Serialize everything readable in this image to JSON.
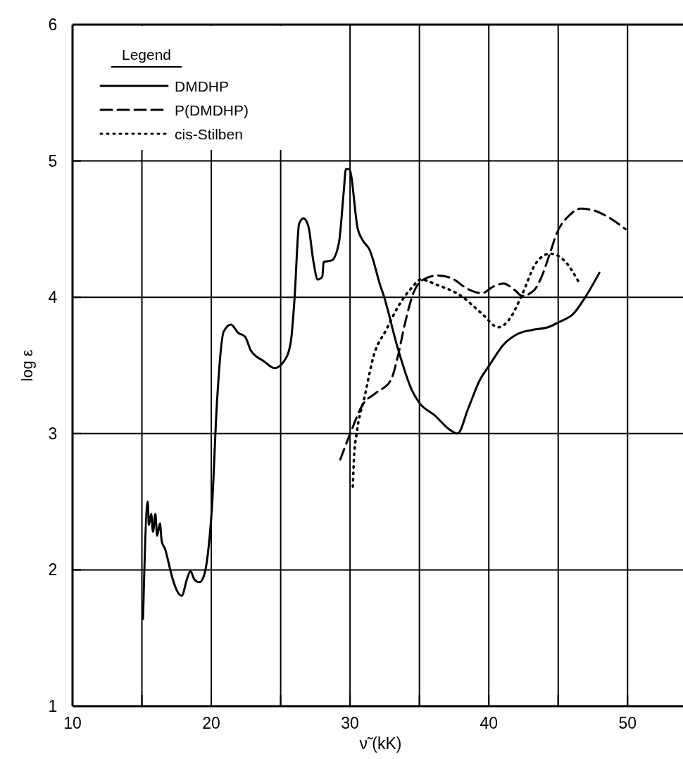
{
  "chart_data": {
    "type": "line",
    "xlabel": "ν̃ (kK)",
    "ylabel": "log ε",
    "legend_title": "Legend",
    "legend": "top left",
    "grid": true,
    "marker": "none",
    "xlim": [
      10,
      54.3
    ],
    "ylim": [
      1,
      6
    ],
    "xticks": [
      10,
      {
        "value": 15,
        "label": null
      },
      20,
      {
        "value": 25,
        "label": null
      },
      30,
      {
        "value": 35,
        "label": null
      },
      40,
      {
        "value": 45,
        "label": null
      },
      50
    ],
    "yticks": [
      1,
      2,
      3,
      4,
      5,
      6
    ],
    "series": [
      {
        "name": "DMDHP",
        "color": "#000000",
        "line_style": "solid",
        "x": [
          15.08,
          15.42,
          15.5,
          15.67,
          15.8,
          15.97,
          16.1,
          16.3,
          16.43,
          16.68,
          17.0,
          17.2,
          17.87,
          18.27,
          18.5,
          18.78,
          19.14,
          19.48,
          19.8,
          20.05,
          20.4,
          20.9,
          21.42,
          21.93,
          22.44,
          22.85,
          23.8,
          24.55,
          25.3,
          25.74,
          26.0,
          26.33,
          26.65,
          27.0,
          27.35,
          27.67,
          28.0,
          28.1,
          28.68,
          29.2,
          29.55,
          29.7,
          29.95,
          30.56,
          30.9,
          31.4,
          32.23,
          32.4,
          33.43,
          34.45,
          34.96,
          36.14,
          37.16,
          37.75,
          38.5,
          39.34,
          40.1,
          41.04,
          42.06,
          43.08,
          44.26,
          45.1,
          46.1,
          46.95,
          47.97
        ],
        "values": [
          1.64,
          2.5,
          2.33,
          2.41,
          2.28,
          2.41,
          2.25,
          2.34,
          2.21,
          2.15,
          2.02,
          1.94,
          1.81,
          1.94,
          1.99,
          1.93,
          1.91,
          1.96,
          2.16,
          2.46,
          3.21,
          3.75,
          3.8,
          3.74,
          3.71,
          3.61,
          3.53,
          3.48,
          3.54,
          3.68,
          3.99,
          4.54,
          4.58,
          4.52,
          4.27,
          4.13,
          4.15,
          4.26,
          4.27,
          4.4,
          4.78,
          4.94,
          4.94,
          4.5,
          4.42,
          4.35,
          4.07,
          4.02,
          3.63,
          3.32,
          3.23,
          3.13,
          3.03,
          3.0,
          3.18,
          3.39,
          3.51,
          3.65,
          3.73,
          3.76,
          3.78,
          3.82,
          3.88,
          4.0,
          4.18
        ]
      },
      {
        "name": "P(DMDHP)",
        "color": "#000000",
        "line_style": "dashed",
        "x": [
          29.3,
          30.05,
          30.9,
          31.9,
          32.93,
          33.43,
          33.94,
          34.6,
          35.3,
          36.3,
          37.3,
          38.5,
          39.5,
          40.36,
          41.05,
          41.9,
          42.4,
          43.25,
          43.76,
          44.4,
          44.9,
          45.8,
          46.6,
          47.46,
          48.4,
          49.85
        ],
        "values": [
          2.81,
          3.01,
          3.21,
          3.3,
          3.39,
          3.56,
          3.8,
          4.04,
          4.13,
          4.16,
          4.14,
          4.06,
          4.03,
          4.08,
          4.1,
          4.05,
          4.01,
          4.05,
          4.14,
          4.32,
          4.47,
          4.6,
          4.65,
          4.64,
          4.6,
          4.5
        ]
      },
      {
        "name": "cis-Stilben",
        "color": "#000000",
        "line_style": "dotted",
        "x": [
          30.2,
          30.3,
          30.46,
          31.07,
          31.7,
          32.6,
          33.4,
          34.45,
          35.1,
          36.3,
          38.0,
          39.5,
          40.7,
          41.56,
          42.4,
          43.4,
          44.4,
          45.43,
          46.55
        ],
        "values": [
          2.61,
          2.85,
          2.99,
          3.28,
          3.57,
          3.76,
          3.92,
          4.07,
          4.13,
          4.09,
          4.01,
          3.88,
          3.78,
          3.85,
          4.02,
          4.25,
          4.32,
          4.27,
          4.1
        ]
      }
    ]
  }
}
